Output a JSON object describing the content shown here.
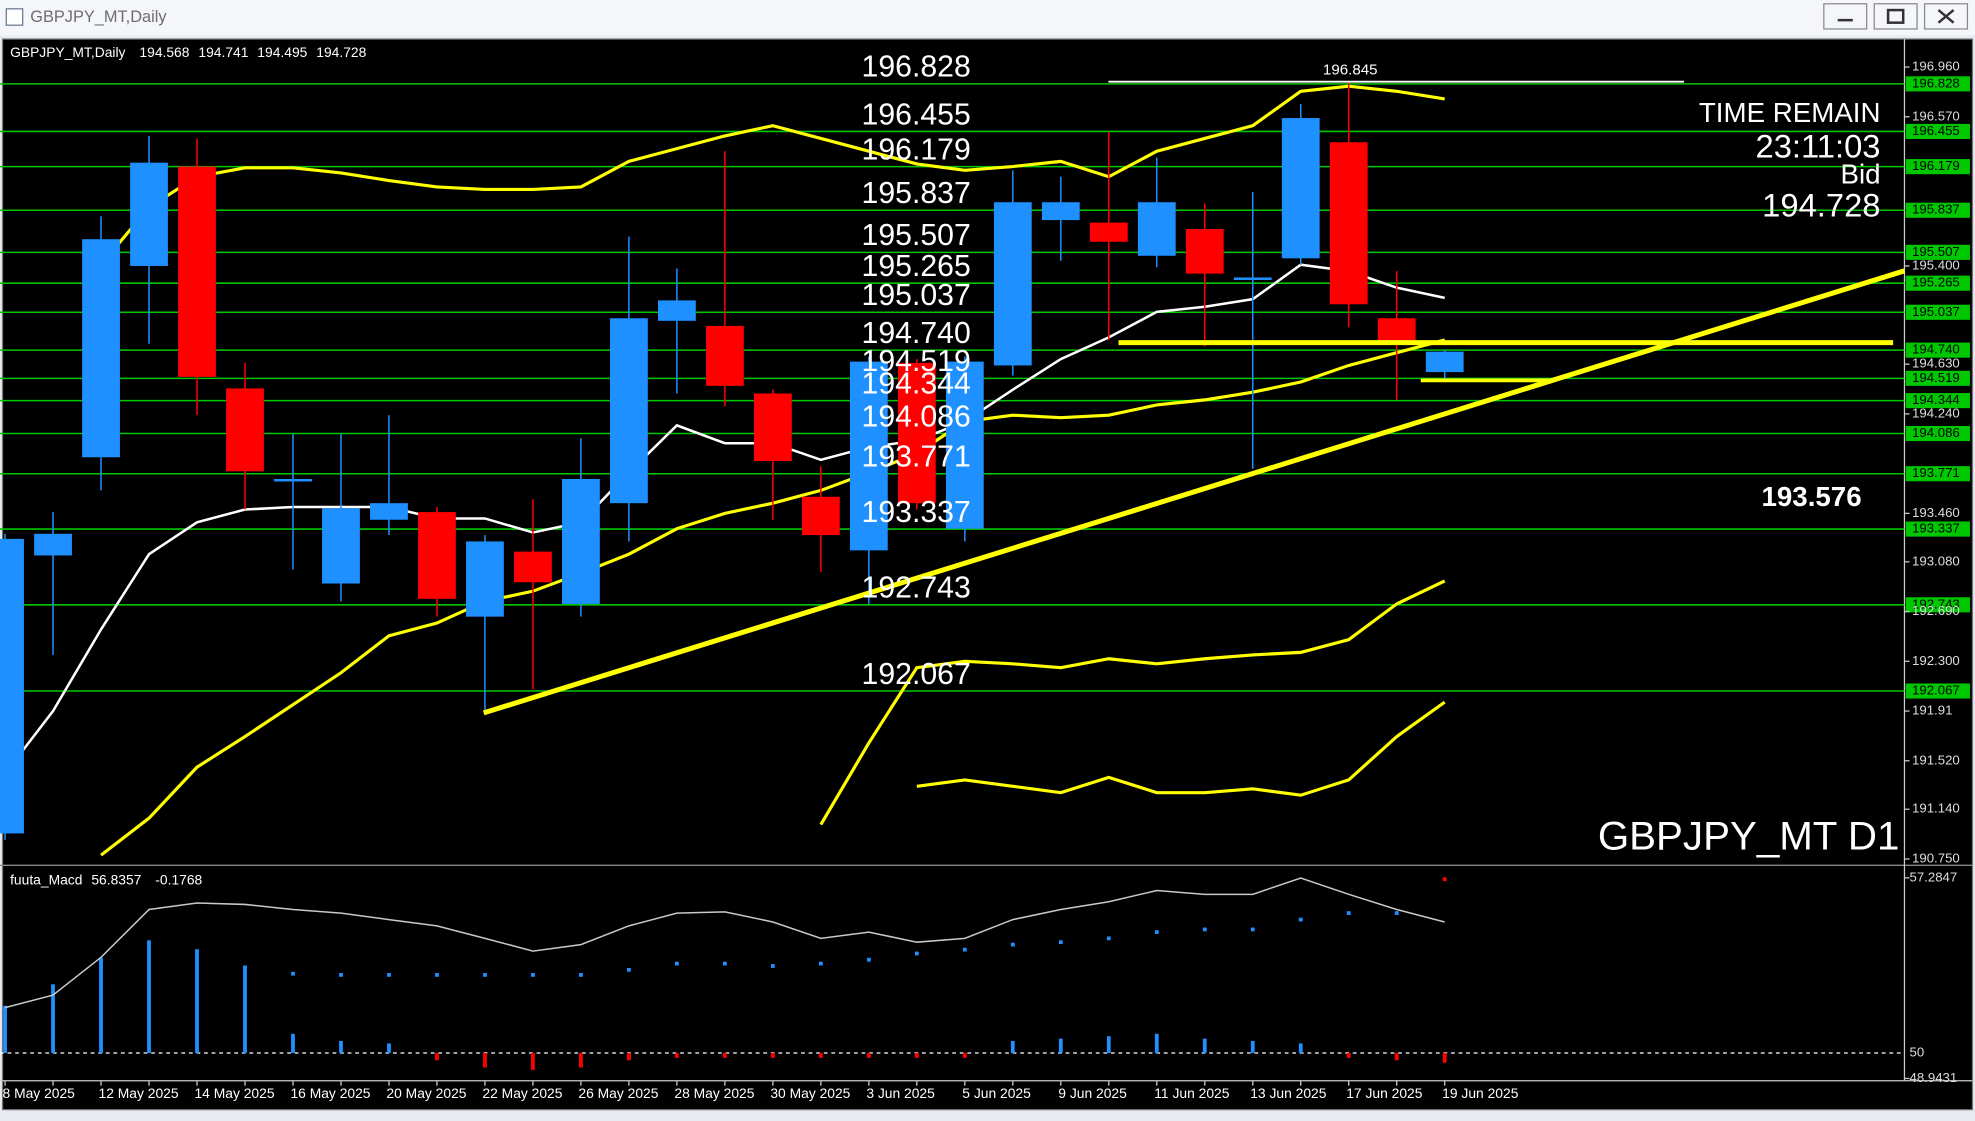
{
  "window": {
    "title": "GBPJPY_MT,Daily"
  },
  "chart_data": [
    {
      "type": "candlestick",
      "categories": [
        "8 May 2025",
        null,
        "12 May 2025",
        null,
        "14 May 2025",
        null,
        "16 May 2025",
        null,
        "20 May 2025",
        null,
        "22 May 2025",
        null,
        "26 May 2025",
        null,
        "28 May 2025",
        null,
        "30 May 2025",
        null,
        "3 Jun 2025",
        null,
        "5 Jun 2025",
        null,
        "9 Jun 2025",
        null,
        "11 Jun 2025",
        null,
        "13 Jun 2025",
        null,
        "17 Jun 2025",
        null,
        "19 Jun 2025"
      ],
      "open": [
        190.95,
        193.13,
        193.9,
        195.4,
        196.18,
        194.44,
        193.71,
        192.91,
        193.41,
        193.47,
        192.65,
        193.16,
        192.75,
        193.54,
        194.97,
        194.93,
        194.4,
        193.59,
        193.17,
        194.64,
        193.34,
        194.62,
        195.76,
        195.74,
        195.48,
        195.69,
        195.29,
        195.46,
        196.37,
        194.99,
        194.568
      ],
      "high": [
        193.3,
        193.47,
        195.79,
        196.42,
        196.4,
        194.64,
        194.08,
        194.08,
        194.23,
        193.51,
        193.29,
        193.57,
        194.05,
        195.63,
        195.38,
        196.3,
        194.43,
        193.83,
        194.69,
        194.67,
        194.69,
        196.15,
        196.1,
        196.45,
        196.25,
        195.89,
        195.98,
        196.67,
        196.845,
        195.36,
        194.741
      ],
      "low": [
        190.9,
        192.35,
        193.64,
        194.79,
        194.23,
        193.49,
        193.02,
        192.77,
        193.29,
        192.65,
        191.91,
        192.08,
        192.65,
        193.24,
        194.4,
        194.3,
        193.41,
        193.0,
        192.75,
        193.49,
        193.24,
        194.54,
        195.44,
        194.82,
        195.39,
        194.77,
        193.81,
        195.41,
        194.92,
        194.35,
        194.495
      ],
      "close": [
        193.26,
        193.3,
        195.61,
        196.21,
        194.53,
        193.79,
        193.73,
        193.5,
        193.54,
        192.79,
        193.24,
        192.92,
        193.73,
        194.99,
        195.13,
        194.46,
        193.87,
        193.29,
        194.65,
        193.54,
        194.65,
        195.9,
        195.9,
        195.59,
        195.9,
        195.34,
        195.31,
        196.56,
        195.1,
        194.8,
        194.728
      ],
      "up_color": "#1e90ff",
      "down_color": "#ff0000",
      "ylim": [
        190.72,
        197.14
      ],
      "yticks": [
        {
          "value": 196.96,
          "label": "196.960"
        },
        {
          "value": 196.57,
          "label": "196.570"
        },
        {
          "value": 195.4,
          "label": "195.400"
        },
        {
          "value": 194.63,
          "label": "194.630"
        },
        {
          "value": 194.24,
          "label": "194.240"
        },
        {
          "value": 193.46,
          "label": "193.460"
        },
        {
          "value": 193.08,
          "label": "193.080"
        },
        {
          "value": 192.69,
          "label": "192.690"
        },
        {
          "value": 192.3,
          "label": "192.300"
        },
        191.91,
        {
          "value": 191.52,
          "label": "191.520"
        },
        {
          "value": 191.14,
          "label": "191.140"
        },
        {
          "value": 190.75,
          "label": "190.750"
        }
      ],
      "levels": [
        196.828,
        196.455,
        196.179,
        195.837,
        195.507,
        195.265,
        195.037,
        194.74,
        194.519,
        194.344,
        194.086,
        193.771,
        193.337,
        192.743,
        192.067
      ],
      "level_labels": [
        "196.828",
        "196.455",
        "196.179",
        "195.837",
        "195.507",
        "195.265",
        "195.037",
        "194.740",
        "194.519",
        "194.344",
        "194.086",
        "193.771",
        "193.337",
        "192.743",
        "192.067"
      ],
      "level_color": "#00c800",
      "session_high": 196.845,
      "marker_price": 193.576,
      "overlays": [
        {
          "color": "#ffffff",
          "values": [
            191.42,
            191.91,
            192.55,
            193.14,
            193.39,
            193.49,
            193.51,
            193.51,
            193.51,
            193.42,
            193.42,
            193.31,
            193.39,
            193.78,
            194.15,
            194.01,
            194.01,
            193.88,
            193.98,
            194.03,
            194.18,
            194.43,
            194.67,
            194.84,
            195.04,
            195.08,
            195.14,
            195.41,
            195.36,
            195.23,
            195.15
          ]
        },
        {
          "color": "#ffff00",
          "values": [
            null,
            null,
            195.41,
            195.86,
            196.1,
            196.17,
            196.17,
            196.13,
            196.07,
            196.02,
            196.0,
            196.0,
            196.02,
            196.22,
            196.32,
            196.42,
            196.5,
            196.4,
            196.3,
            196.2,
            196.15,
            196.18,
            196.22,
            196.1,
            196.3,
            196.4,
            196.5,
            196.77,
            196.81,
            196.77,
            196.71
          ]
        },
        {
          "color": "#ffff00",
          "values": [
            null,
            null,
            190.78,
            191.07,
            191.47,
            191.71,
            191.96,
            192.21,
            192.5,
            192.6,
            192.77,
            192.85,
            192.99,
            193.14,
            193.34,
            193.46,
            193.54,
            193.64,
            193.78,
            193.93,
            194.18,
            194.23,
            194.21,
            194.23,
            194.31,
            194.35,
            194.41,
            194.49,
            194.62,
            194.72,
            194.82
          ]
        },
        {
          "color": "#ffff00",
          "values": [
            null,
            null,
            null,
            null,
            null,
            null,
            null,
            null,
            null,
            null,
            null,
            null,
            null,
            null,
            null,
            null,
            null,
            191.02,
            191.66,
            192.25,
            192.3,
            192.28,
            192.25,
            192.32,
            192.28,
            192.32,
            192.35,
            192.37,
            192.47,
            192.75,
            192.93
          ]
        },
        {
          "color": "#ffff00",
          "values": [
            null,
            null,
            null,
            null,
            null,
            null,
            null,
            null,
            null,
            null,
            null,
            null,
            null,
            null,
            null,
            null,
            null,
            null,
            null,
            191.32,
            191.37,
            191.32,
            191.27,
            191.39,
            191.27,
            191.27,
            191.3,
            191.25,
            191.37,
            191.71,
            191.98
          ]
        }
      ],
      "time_remain_label": "TIME REMAIN",
      "time_remain": "23:11:03",
      "bid_label": "Bid",
      "symbol_label": "GBPJPY_MT D1"
    },
    {
      "type": "indicator",
      "title": "fuuta_Macd",
      "readout": [
        56.8357,
        -0.1768
      ],
      "ylim": [
        48.85,
        57.65
      ],
      "yticks": [
        57.2847,
        50,
        48.9431
      ],
      "up_color": "#1e90ff",
      "down_color": "#ff0000",
      "signal_color": "#c8c8c8",
      "histogram": [
        51.9,
        52.8,
        53.9,
        54.6,
        54.2,
        53.6,
        50.8,
        50.5,
        50.4,
        49.7,
        49.4,
        49.3,
        49.4,
        49.7,
        49.8,
        49.8,
        49.8,
        49.8,
        49.8,
        49.8,
        49.8,
        50.5,
        50.6,
        50.7,
        50.8,
        50.6,
        50.5,
        50.4,
        49.8,
        49.7,
        49.6
      ],
      "main": [
        51.89,
        52.78,
        53.88,
        54.61,
        54.24,
        53.56,
        53.3,
        53.25,
        53.25,
        53.25,
        53.25,
        53.25,
        53.25,
        53.46,
        53.72,
        53.72,
        53.62,
        53.72,
        53.88,
        54.14,
        54.3,
        54.51,
        54.61,
        54.77,
        55.03,
        55.14,
        55.14,
        55.55,
        55.82,
        55.82,
        57.23
      ],
      "signal": [
        51.89,
        52.41,
        53.98,
        55.97,
        56.24,
        56.18,
        55.97,
        55.82,
        55.55,
        55.29,
        54.77,
        54.24,
        54.51,
        55.29,
        55.82,
        55.87,
        55.45,
        54.77,
        55.03,
        54.61,
        54.77,
        55.55,
        55.97,
        56.29,
        56.76,
        56.6,
        56.6,
        57.28,
        56.6,
        55.97,
        55.45
      ]
    }
  ]
}
